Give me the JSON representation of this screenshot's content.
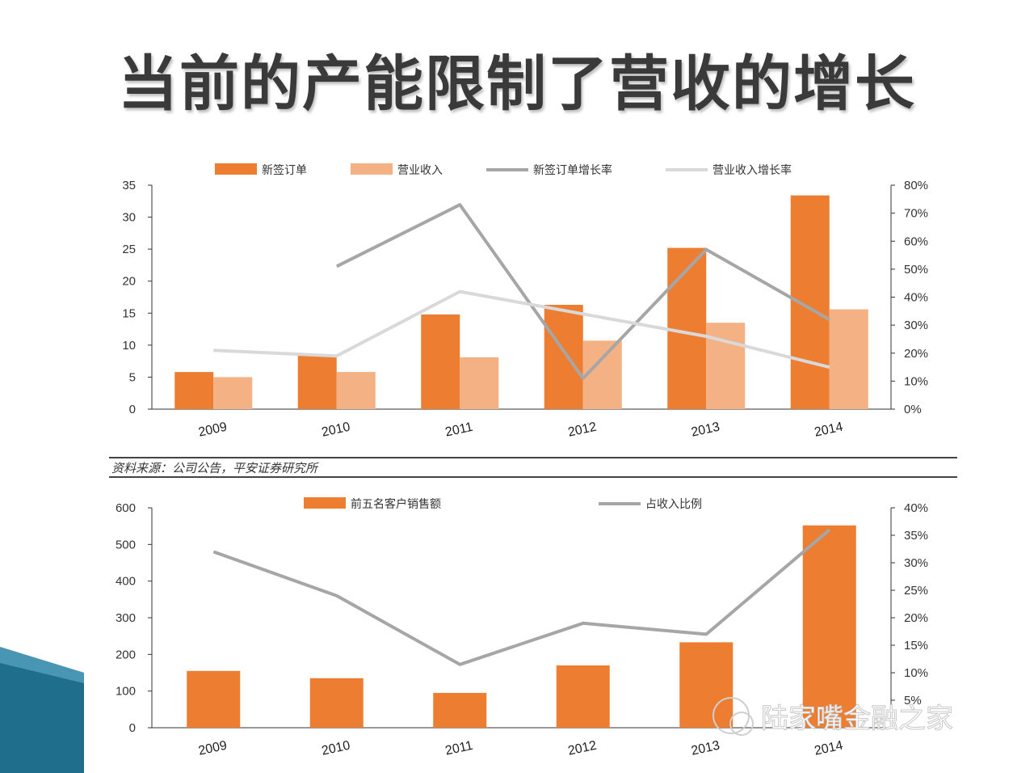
{
  "slide": {
    "title": "当前的产能限制了营收的增长",
    "source": "资料来源：公司公告，平安证券研究所",
    "watermark": "陆家嘴金融之家"
  },
  "colors": {
    "dark_orange": "#ED7D31",
    "light_orange": "#F4B183",
    "dark_gray": "#A6A6A6",
    "light_gray": "#D9D9D9",
    "teal_decor": "#1F6E8C"
  },
  "chart_data": [
    {
      "type": "bar",
      "categories": [
        "2009",
        "2010",
        "2011",
        "2012",
        "2013",
        "2014"
      ],
      "series": [
        {
          "name": "新签订单",
          "kind": "bar",
          "axis": "left",
          "color": "#ED7D31",
          "values": [
            5.8,
            8.5,
            14.8,
            16.3,
            25.2,
            33.4
          ]
        },
        {
          "name": "营业收入",
          "kind": "bar",
          "axis": "left",
          "color": "#F4B183",
          "values": [
            5.0,
            5.8,
            8.1,
            10.7,
            13.5,
            15.6
          ]
        },
        {
          "name": "新签订单增长率",
          "kind": "line",
          "axis": "right",
          "color": "#A6A6A6",
          "values": [
            null,
            51,
            73,
            11,
            57,
            32
          ]
        },
        {
          "name": "营业收入增长率",
          "kind": "line",
          "axis": "right",
          "color": "#D9D9D9",
          "values": [
            21,
            19,
            42,
            34,
            26,
            15
          ]
        }
      ],
      "left_axis": {
        "ylim": [
          0,
          35
        ],
        "ticks": [
          "0",
          "5",
          "10",
          "15",
          "20",
          "25",
          "30",
          "35"
        ]
      },
      "right_axis": {
        "ylim": [
          0,
          80
        ],
        "ticks": [
          "0%",
          "10%",
          "20%",
          "30%",
          "40%",
          "50%",
          "60%",
          "70%",
          "80%"
        ]
      },
      "legend_position": "top"
    },
    {
      "type": "bar",
      "categories": [
        "2009",
        "2010",
        "2011",
        "2012",
        "2013",
        "2014"
      ],
      "series": [
        {
          "name": "前五名客户销售额",
          "kind": "bar",
          "axis": "left",
          "color": "#ED7D31",
          "values": [
            155,
            135,
            95,
            170,
            233,
            552
          ]
        },
        {
          "name": "占收入比例",
          "kind": "line",
          "axis": "right",
          "color": "#A6A6A6",
          "values": [
            32,
            24,
            11.5,
            19,
            17,
            36
          ]
        }
      ],
      "left_axis": {
        "ylim": [
          0,
          600
        ],
        "ticks": [
          "0",
          "100",
          "200",
          "300",
          "400",
          "500",
          "600"
        ]
      },
      "right_axis": {
        "ylim": [
          0,
          40
        ],
        "ticks": [
          "5%",
          "10%",
          "15%",
          "20%",
          "25%",
          "30%",
          "35%",
          "40%"
        ]
      },
      "legend_position": "top"
    }
  ]
}
